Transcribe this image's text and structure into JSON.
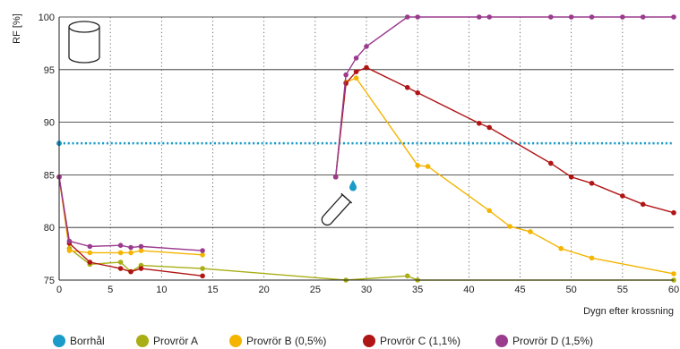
{
  "chart_data": {
    "type": "line",
    "title": "",
    "ylabel": "RF [%]",
    "xlabel": "Dygn efter krossning",
    "xlim": [
      0,
      60
    ],
    "ylim": [
      75,
      100
    ],
    "xticks": [
      0,
      5,
      10,
      15,
      20,
      25,
      30,
      35,
      40,
      45,
      50,
      55,
      60
    ],
    "yticks": [
      75,
      80,
      85,
      90,
      95,
      100
    ],
    "grid": {
      "horizontal": "solid",
      "vertical": "dotted"
    },
    "legend_position": "bottom",
    "series": [
      {
        "name": "Borrhål",
        "color": "#1a9bc8",
        "style": "dotted-line",
        "points": [
          [
            0,
            88
          ],
          [
            60,
            88
          ]
        ]
      },
      {
        "name": "Provrör A",
        "color": "#a8ae14",
        "points": [
          [
            0,
            84.8
          ],
          [
            1,
            78
          ],
          [
            3,
            76.5
          ],
          [
            6,
            76.7
          ],
          [
            7,
            75.8
          ],
          [
            8,
            76.4
          ],
          [
            14,
            76.1
          ],
          [
            28,
            75
          ],
          [
            34,
            75.4
          ],
          [
            35,
            75
          ],
          [
            60,
            75
          ]
        ]
      },
      {
        "name": "Provrör B (0,5%)",
        "color": "#f5b400",
        "points": [
          [
            0,
            84.8
          ],
          [
            1,
            77.8
          ],
          [
            3,
            77.6
          ],
          [
            6,
            77.6
          ],
          [
            7,
            77.6
          ],
          [
            8,
            77.8
          ],
          [
            14,
            77.4
          ],
          [
            27,
            84.8
          ],
          [
            28,
            93.8
          ],
          [
            29,
            94.2
          ],
          [
            35,
            85.9
          ],
          [
            36,
            85.8
          ],
          [
            42,
            81.6
          ],
          [
            44,
            80.1
          ],
          [
            46,
            79.6
          ],
          [
            49,
            78
          ],
          [
            52,
            77.1
          ],
          [
            60,
            75.6
          ]
        ]
      },
      {
        "name": "Provrör C (1,1%)",
        "color": "#b01515",
        "points": [
          [
            0,
            84.8
          ],
          [
            1,
            78.5
          ],
          [
            3,
            76.7
          ],
          [
            6,
            76.1
          ],
          [
            7,
            75.8
          ],
          [
            8,
            76.1
          ],
          [
            14,
            75.4
          ],
          [
            27,
            84.8
          ],
          [
            28,
            93.7
          ],
          [
            29,
            94.8
          ],
          [
            30,
            95.2
          ],
          [
            34,
            93.3
          ],
          [
            35,
            92.8
          ],
          [
            41,
            89.9
          ],
          [
            42,
            89.5
          ],
          [
            48,
            86.1
          ],
          [
            50,
            84.8
          ],
          [
            52,
            84.2
          ],
          [
            55,
            83
          ],
          [
            57,
            82.2
          ],
          [
            60,
            81.4
          ]
        ]
      },
      {
        "name": "Provrör D (1,5%)",
        "color": "#9a3b8e",
        "points": [
          [
            0,
            84.8
          ],
          [
            1,
            78.7
          ],
          [
            3,
            78.2
          ],
          [
            6,
            78.3
          ],
          [
            7,
            78.1
          ],
          [
            8,
            78.2
          ],
          [
            14,
            77.8
          ],
          [
            27,
            84.8
          ],
          [
            28,
            94.5
          ],
          [
            29,
            96.1
          ],
          [
            30,
            97.2
          ],
          [
            34,
            100
          ],
          [
            35,
            100
          ],
          [
            41,
            100
          ],
          [
            42,
            100
          ],
          [
            48,
            100
          ],
          [
            50,
            100
          ],
          [
            52,
            100
          ],
          [
            55,
            100
          ],
          [
            57,
            100
          ],
          [
            60,
            100
          ]
        ]
      }
    ],
    "annotations": [
      {
        "icon": "cylinder-icon",
        "x": 2.5,
        "y": 97.5
      },
      {
        "icon": "test-tube-icon",
        "x": 28.5,
        "y": 83
      }
    ]
  }
}
